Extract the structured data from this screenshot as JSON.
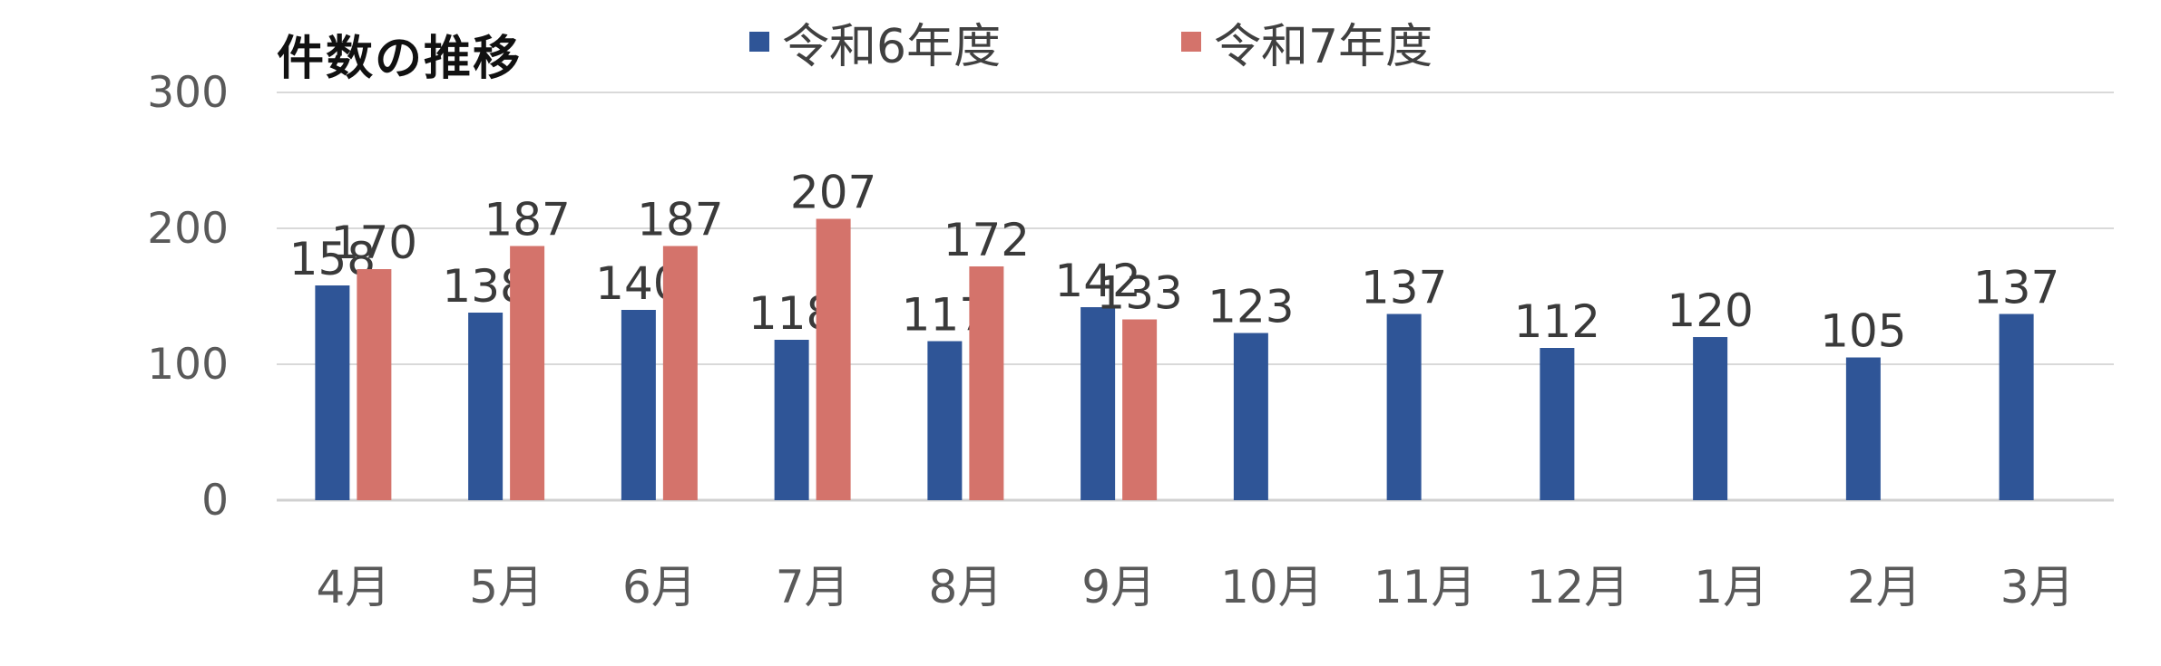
{
  "chart_data": {
    "type": "bar",
    "title": "件数の推移",
    "categories": [
      "4月",
      "5月",
      "6月",
      "7月",
      "8月",
      "9月",
      "10月",
      "11月",
      "12月",
      "1月",
      "2月",
      "3月"
    ],
    "series": [
      {
        "name": "令和6年度",
        "color": "#2f5597",
        "values": [
          158,
          138,
          140,
          118,
          117,
          142,
          123,
          137,
          112,
          120,
          105,
          137
        ]
      },
      {
        "name": "令和7年度",
        "color": "#d4736b",
        "values": [
          170,
          187,
          187,
          207,
          172,
          133,
          null,
          null,
          null,
          null,
          null,
          null
        ]
      }
    ],
    "ylim": [
      0,
      300
    ],
    "yticks": [
      0,
      100,
      200,
      300
    ],
    "grid": true,
    "legend_position": "top"
  }
}
